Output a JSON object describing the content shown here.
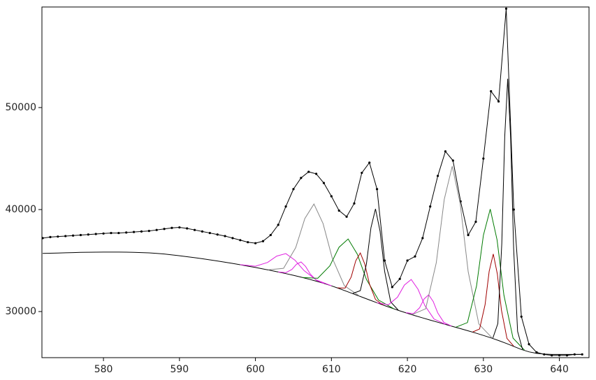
{
  "chart_data": {
    "type": "line",
    "xlim": [
      571.9,
      643.9
    ],
    "ylim": [
      25480,
      59860
    ],
    "xticks": [
      580,
      590,
      600,
      610,
      620,
      630,
      640
    ],
    "yticks": [
      30000,
      40000,
      50000
    ],
    "x": [
      572,
      573,
      574,
      575,
      576,
      577,
      578,
      579,
      580,
      581,
      582,
      583,
      584,
      585,
      586,
      587,
      588,
      589,
      590,
      591,
      592,
      593,
      594,
      595,
      596,
      597,
      598,
      599,
      600,
      601,
      602,
      603,
      604,
      605,
      606,
      607,
      608,
      609,
      610,
      611,
      612,
      613,
      614,
      615,
      616,
      617,
      618,
      619,
      620,
      621,
      622,
      623,
      624,
      625,
      626,
      627,
      628,
      629,
      630,
      631,
      632,
      633,
      634,
      635,
      636,
      637,
      638,
      639,
      640,
      641,
      642,
      643
    ],
    "series": [
      {
        "color": "#000000",
        "marker": "dots",
        "values": [
          37200,
          37300,
          37350,
          37400,
          37450,
          37500,
          37550,
          37600,
          37650,
          37700,
          37700,
          37750,
          37800,
          37850,
          37900,
          38000,
          38100,
          38200,
          38250,
          38150,
          38000,
          37850,
          37700,
          37550,
          37400,
          37200,
          37000,
          36800,
          36700,
          36900,
          37500,
          38500,
          40300,
          42000,
          43100,
          43700,
          43500,
          42600,
          41300,
          39900,
          39300,
          40600,
          43600,
          44600,
          42000,
          35000,
          32400,
          33200,
          35000,
          35400,
          37200,
          40300,
          43300,
          45700,
          44800,
          40800,
          37500,
          38800,
          45000,
          51600,
          50600,
          59700,
          40000,
          29500,
          26800,
          26000,
          25800,
          25700,
          25700,
          25700,
          25800,
          25800
        ]
      },
      {
        "color": "#000000",
        "values": [
          35700,
          35720,
          35740,
          35760,
          35780,
          35800,
          35810,
          35820,
          35830,
          35830,
          35830,
          35820,
          35800,
          35780,
          35750,
          35700,
          35640,
          35560,
          35470,
          35380,
          35280,
          35180,
          35070,
          34960,
          34840,
          34720,
          34590,
          34450,
          34320,
          34180,
          34030,
          33880,
          33720,
          33550,
          33370,
          33180,
          32980,
          32760,
          32520,
          32260,
          31980,
          31700,
          31420,
          31140,
          30860,
          30580,
          30320,
          30070,
          29830,
          29600,
          29380,
          29160,
          28950,
          28740,
          28530,
          28320,
          28110,
          27890,
          27660,
          27420,
          27160,
          26880,
          26580,
          26280,
          26050,
          25900,
          25830,
          25800,
          25800,
          25800,
          25800,
          25800
        ]
      },
      {
        "color": "#e020e0",
        "x": [
          598,
          600,
          601.6,
          602.8,
          604,
          605.2,
          606.4,
          608,
          610
        ],
        "values": [
          34594,
          34443,
          34813,
          35437,
          35680,
          35037,
          34013,
          33103,
          32524
        ]
      },
      {
        "color": "#e020e0",
        "x": [
          603,
          604,
          604.8,
          605.4,
          606,
          606.6,
          607.2,
          608,
          609
        ],
        "values": [
          33883,
          33813,
          34130,
          34641,
          34860,
          34421,
          33690,
          33073,
          32763
        ]
      },
      {
        "color": "#888888",
        "x": [
          601.7,
          603.7,
          605.3,
          606.5,
          607.7,
          608.9,
          610.1,
          611.7,
          613.7
        ],
        "values": [
          34090,
          34239,
          36263,
          39118,
          40540,
          38623,
          35263,
          32534,
          31520
        ]
      },
      {
        "color": "#007a00",
        "x": [
          606.2,
          608.2,
          609.8,
          611,
          612.2,
          613.4,
          614.6,
          616.2,
          618.2
        ],
        "values": [
          33340,
          33259,
          34485,
          36303,
          37115,
          35633,
          33165,
          31129,
          30280
        ]
      },
      {
        "color": "#a00000",
        "x": [
          610.8,
          611.8,
          612.6,
          613.2,
          613.8,
          614.4,
          615,
          615.8,
          616.8
        ],
        "values": [
          32319,
          32302,
          33386,
          34971,
          35745,
          34636,
          32716,
          31182,
          30644
        ]
      },
      {
        "color": "#000000",
        "x": [
          612.8,
          613.8,
          614.6,
          615.2,
          615.8,
          616.4,
          617,
          617.8,
          618.8
        ],
        "values": [
          31773,
          32047,
          34626,
          38213,
          40065,
          37878,
          33956,
          30942,
          30138
        ]
      },
      {
        "color": "#e020e0",
        "x": [
          616,
          617.5,
          618.7,
          619.6,
          620.5,
          621.4,
          622.3,
          623.5,
          625
        ],
        "values": [
          30867,
          30664,
          31411,
          32597,
          33145,
          32182,
          30581,
          29269,
          28747
        ]
      },
      {
        "color": "#e020e0",
        "x": [
          619.8,
          620.8,
          621.6,
          622.2,
          622.8,
          623.4,
          624,
          624.8,
          625.8
        ],
        "values": [
          29885,
          29798,
          30365,
          31236,
          31645,
          30976,
          29850,
          28933,
          28575
        ]
      },
      {
        "color": "#888888",
        "x": [
          620.65,
          622.4,
          623.8,
          624.85,
          625.9,
          626.95,
          628,
          629.4,
          631.15
        ],
        "values": [
          29711,
          30271,
          34783,
          41000,
          44250,
          40560,
          33903,
          28781,
          27411
        ]
      },
      {
        "color": "#007a00",
        "x": [
          626.4,
          627.9,
          629.1,
          630,
          630.9,
          631.8,
          632.7,
          633.9,
          635.4
        ],
        "values": [
          28470,
          28918,
          32514,
          37475,
          40045,
          37025,
          31609,
          27398,
          26215
        ]
      },
      {
        "color": "#a00000",
        "x": [
          628.6,
          629.5,
          630.22,
          630.76,
          631.3,
          631.84,
          632.38,
          633.1,
          634
        ],
        "values": [
          27997,
          28294,
          30668,
          33946,
          35645,
          33666,
          30118,
          27369,
          26597
        ]
      },
      {
        "color": "#000000",
        "x": [
          631.25,
          631.9,
          632.42,
          632.81,
          633.2,
          633.59,
          633.98,
          634.5,
          635.15
        ],
        "values": [
          27412,
          28815,
          36639,
          47184,
          52820,
          46954,
          36179,
          28055,
          26287
        ]
      }
    ]
  }
}
